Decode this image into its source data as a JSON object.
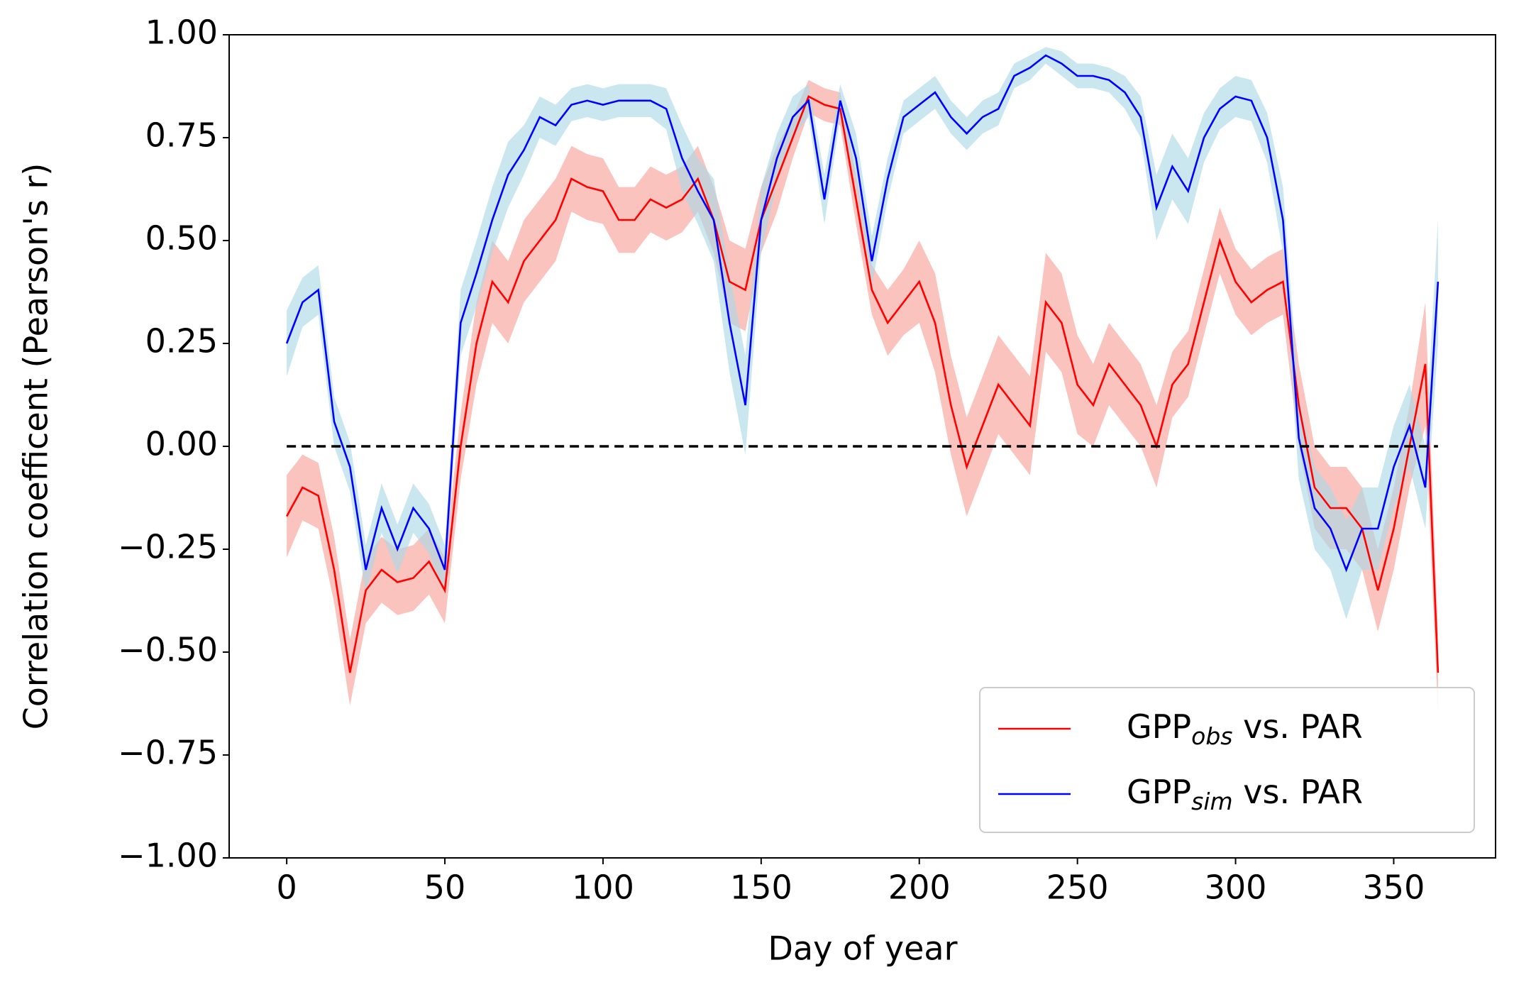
{
  "chart_data": {
    "type": "line",
    "xlabel": "Day of year",
    "ylabel": "Correlation coefficent (Pearson's r)",
    "x": [
      0,
      5,
      10,
      15,
      20,
      25,
      30,
      35,
      40,
      45,
      50,
      55,
      60,
      65,
      70,
      75,
      80,
      85,
      90,
      95,
      100,
      105,
      110,
      115,
      120,
      125,
      130,
      135,
      140,
      145,
      150,
      155,
      160,
      165,
      170,
      175,
      180,
      185,
      190,
      195,
      200,
      205,
      210,
      215,
      220,
      225,
      230,
      235,
      240,
      245,
      250,
      255,
      260,
      265,
      270,
      275,
      280,
      285,
      290,
      295,
      300,
      305,
      310,
      315,
      320,
      325,
      330,
      335,
      340,
      345,
      350,
      355,
      360,
      364
    ],
    "series": [
      {
        "name": "GPP",
        "name_sub": "obs",
        "name_suffix": " vs. PAR",
        "color": "#ff0000",
        "band_color": "#f8a39b",
        "values": [
          -0.17,
          -0.1,
          -0.12,
          -0.3,
          -0.55,
          -0.35,
          -0.3,
          -0.33,
          -0.32,
          -0.28,
          -0.35,
          0.0,
          0.25,
          0.4,
          0.35,
          0.45,
          0.5,
          0.55,
          0.65,
          0.63,
          0.62,
          0.55,
          0.55,
          0.6,
          0.58,
          0.6,
          0.65,
          0.55,
          0.4,
          0.38,
          0.55,
          0.65,
          0.75,
          0.85,
          0.83,
          0.82,
          0.6,
          0.38,
          0.3,
          0.35,
          0.4,
          0.3,
          0.1,
          -0.05,
          0.05,
          0.15,
          0.1,
          0.05,
          0.35,
          0.3,
          0.15,
          0.1,
          0.2,
          0.15,
          0.1,
          0.0,
          0.15,
          0.2,
          0.35,
          0.5,
          0.4,
          0.35,
          0.38,
          0.4,
          0.1,
          -0.1,
          -0.15,
          -0.15,
          -0.2,
          -0.35,
          -0.2,
          0.0,
          0.2,
          -0.55
        ],
        "error": [
          0.1,
          0.08,
          0.08,
          0.08,
          0.08,
          0.08,
          0.08,
          0.08,
          0.08,
          0.08,
          0.08,
          0.08,
          0.1,
          0.1,
          0.1,
          0.1,
          0.1,
          0.1,
          0.08,
          0.08,
          0.08,
          0.08,
          0.08,
          0.08,
          0.08,
          0.08,
          0.08,
          0.08,
          0.1,
          0.1,
          0.08,
          0.08,
          0.05,
          0.04,
          0.04,
          0.04,
          0.06,
          0.06,
          0.08,
          0.08,
          0.1,
          0.12,
          0.12,
          0.12,
          0.12,
          0.12,
          0.12,
          0.12,
          0.12,
          0.12,
          0.12,
          0.1,
          0.1,
          0.1,
          0.1,
          0.1,
          0.08,
          0.08,
          0.08,
          0.08,
          0.08,
          0.08,
          0.08,
          0.08,
          0.1,
          0.1,
          0.1,
          0.1,
          0.1,
          0.1,
          0.1,
          0.1,
          0.15,
          0.1
        ]
      },
      {
        "name": "GPP",
        "name_sub": "sim",
        "name_suffix": " vs. PAR",
        "color": "#0000ff",
        "band_color": "#add8e6",
        "values": [
          0.25,
          0.35,
          0.38,
          0.06,
          -0.05,
          -0.3,
          -0.15,
          -0.25,
          -0.15,
          -0.2,
          -0.3,
          0.3,
          0.42,
          0.55,
          0.66,
          0.72,
          0.8,
          0.78,
          0.83,
          0.84,
          0.83,
          0.84,
          0.84,
          0.84,
          0.82,
          0.7,
          0.62,
          0.55,
          0.3,
          0.1,
          0.55,
          0.7,
          0.8,
          0.84,
          0.6,
          0.84,
          0.7,
          0.45,
          0.65,
          0.8,
          0.83,
          0.86,
          0.8,
          0.76,
          0.8,
          0.82,
          0.9,
          0.92,
          0.95,
          0.93,
          0.9,
          0.9,
          0.89,
          0.86,
          0.8,
          0.58,
          0.68,
          0.62,
          0.75,
          0.82,
          0.85,
          0.84,
          0.75,
          0.55,
          0.02,
          -0.15,
          -0.2,
          -0.3,
          -0.2,
          -0.2,
          -0.05,
          0.05,
          -0.1,
          0.4
        ],
        "error": [
          0.08,
          0.06,
          0.06,
          0.06,
          0.06,
          0.06,
          0.06,
          0.06,
          0.06,
          0.06,
          0.06,
          0.08,
          0.08,
          0.08,
          0.08,
          0.06,
          0.05,
          0.05,
          0.04,
          0.04,
          0.04,
          0.04,
          0.04,
          0.04,
          0.05,
          0.08,
          0.08,
          0.1,
          0.12,
          0.12,
          0.08,
          0.06,
          0.05,
          0.04,
          0.06,
          0.04,
          0.06,
          0.06,
          0.05,
          0.04,
          0.04,
          0.04,
          0.04,
          0.04,
          0.04,
          0.04,
          0.03,
          0.03,
          0.02,
          0.03,
          0.03,
          0.03,
          0.03,
          0.04,
          0.05,
          0.08,
          0.08,
          0.08,
          0.06,
          0.05,
          0.05,
          0.05,
          0.06,
          0.08,
          0.1,
          0.1,
          0.1,
          0.12,
          0.1,
          0.1,
          0.1,
          0.1,
          0.1,
          0.15
        ]
      }
    ],
    "reference_line": 0,
    "xlim": [
      -18.2,
      382.2
    ],
    "ylim": [
      -1,
      1
    ],
    "xticks": [
      0,
      50,
      100,
      150,
      200,
      250,
      300,
      350
    ],
    "yticks": [
      {
        "value": 1,
        "label": "1.00"
      },
      {
        "value": 0.75,
        "label": "0.75"
      },
      {
        "value": 0.5,
        "label": "0.50"
      },
      {
        "value": 0.25,
        "label": "0.25"
      },
      {
        "value": 0,
        "label": "0.00"
      },
      {
        "value": -0.25,
        "label": "−0.25"
      },
      {
        "value": -0.5,
        "label": "−0.50"
      },
      {
        "value": -0.75,
        "label": "−0.75"
      },
      {
        "value": -1,
        "label": "−1.00"
      }
    ],
    "legend": "lower right",
    "grid": false
  }
}
